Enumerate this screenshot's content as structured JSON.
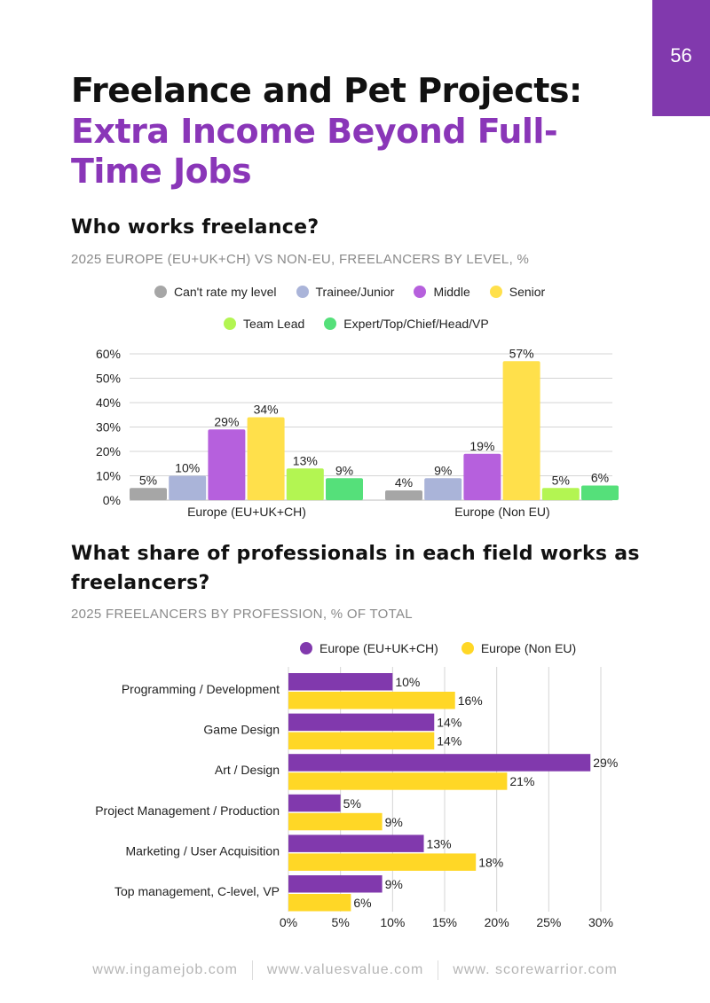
{
  "page_number": "56",
  "title_line1": "Freelance and Pet Projects:",
  "title_line2": "Extra Income Beyond Full-Time Jobs",
  "footer": [
    "www.ingamejob.com",
    "www.valuesvalue.com",
    "www. scorewarrior.com"
  ],
  "chart_data": [
    {
      "type": "bar",
      "title": "Who works freelance?",
      "subtitle": "2025 EUROPE (EU+UK+CH) VS NON-EU, FREELANCERS BY LEVEL, %",
      "categories": [
        "Europe (EU+UK+CH)",
        "Europe (Non EU)"
      ],
      "yticks": [
        "0%",
        "10%",
        "20%",
        "30%",
        "40%",
        "50%",
        "60%"
      ],
      "ylim": [
        0,
        60
      ],
      "grid": true,
      "legend_position": "top",
      "series": [
        {
          "name": "Can't rate my level",
          "color": "#a6a6a6",
          "values": [
            5,
            4
          ],
          "labels": [
            "5%",
            "4%"
          ]
        },
        {
          "name": "Trainee/Junior",
          "color": "#aab4d9",
          "values": [
            10,
            9
          ],
          "labels": [
            "10%",
            "9%"
          ]
        },
        {
          "name": "Middle",
          "color": "#b660dd",
          "values": [
            29,
            19
          ],
          "labels": [
            "29%",
            "19%"
          ]
        },
        {
          "name": "Senior",
          "color": "#ffe04b",
          "values": [
            34,
            57
          ],
          "labels": [
            "34%",
            "57%"
          ]
        },
        {
          "name": "Team Lead",
          "color": "#b3f552",
          "values": [
            13,
            5
          ],
          "labels": [
            "13%",
            "5%"
          ]
        },
        {
          "name": "Expert/Top/Chief/Head/VP",
          "color": "#55e07a",
          "values": [
            9,
            6
          ],
          "labels": [
            "9%",
            "6%"
          ]
        }
      ]
    },
    {
      "type": "bar",
      "orientation": "horizontal",
      "title": "What share of professionals in each field works as freelancers?",
      "subtitle": "2025 FREELANCERS BY PROFESSION, % OF TOTAL",
      "categories": [
        "Programming / Development",
        "Game Design",
        "Art / Design",
        "Project Management / Production",
        "Marketing / User Acquisition",
        "Top management, C-level, VP"
      ],
      "xticks": [
        "0%",
        "5%",
        "10%",
        "15%",
        "20%",
        "25%",
        "30%"
      ],
      "xlim": [
        0,
        30
      ],
      "grid": true,
      "legend_position": "top",
      "series": [
        {
          "name": "Europe (EU+UK+CH)",
          "color": "#8139ad",
          "values": [
            10,
            14,
            29,
            5,
            13,
            9
          ],
          "labels": [
            "10%",
            "14%",
            "29%",
            "5%",
            "13%",
            "9%"
          ]
        },
        {
          "name": "Europe (Non EU)",
          "color": "#ffd726",
          "values": [
            16,
            14,
            21,
            9,
            18,
            6
          ],
          "labels": [
            "16%",
            "14%",
            "21%",
            "9%",
            "18%",
            "6%"
          ]
        }
      ]
    }
  ]
}
